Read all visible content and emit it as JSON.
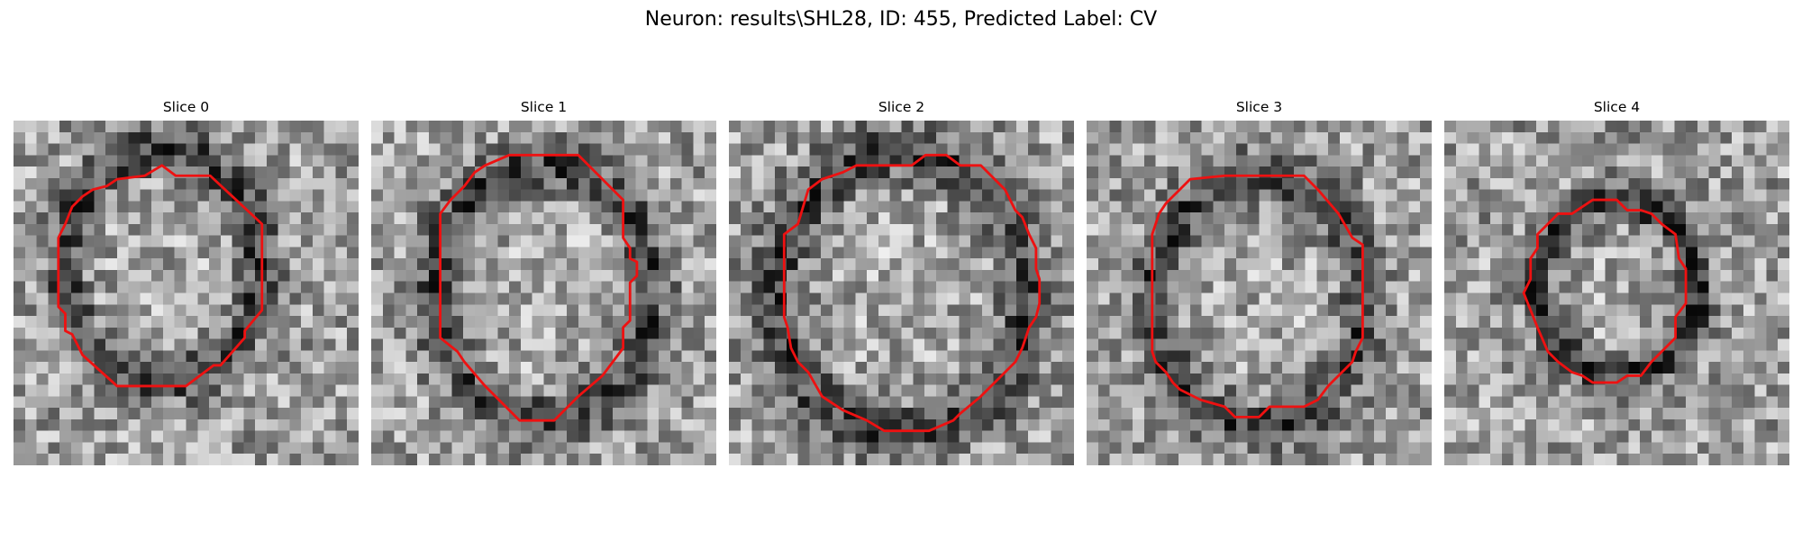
{
  "figure": {
    "title": "Neuron: results\\SHL28, ID: 455, Predicted Label: CV",
    "contour_color": "#ee1111"
  },
  "slices": [
    {
      "label": "Slice 0",
      "center": [
        0.43,
        0.42
      ],
      "radius": [
        0.28,
        0.33
      ],
      "bright": 1.1,
      "dark_ring": 0.35,
      "contour": [
        [
          0.43,
          0.13
        ],
        [
          0.47,
          0.16
        ],
        [
          0.57,
          0.16
        ],
        [
          0.72,
          0.3
        ],
        [
          0.72,
          0.55
        ],
        [
          0.67,
          0.61
        ],
        [
          0.67,
          0.63
        ],
        [
          0.6,
          0.71
        ],
        [
          0.58,
          0.71
        ],
        [
          0.5,
          0.77
        ],
        [
          0.3,
          0.77
        ],
        [
          0.2,
          0.68
        ],
        [
          0.19,
          0.66
        ],
        [
          0.17,
          0.62
        ],
        [
          0.15,
          0.61
        ],
        [
          0.15,
          0.56
        ],
        [
          0.13,
          0.54
        ],
        [
          0.13,
          0.34
        ],
        [
          0.15,
          0.3
        ],
        [
          0.17,
          0.25
        ],
        [
          0.2,
          0.22
        ],
        [
          0.23,
          0.2
        ],
        [
          0.27,
          0.19
        ],
        [
          0.3,
          0.17
        ],
        [
          0.38,
          0.16
        ]
      ]
    },
    {
      "label": "Slice 1",
      "center": [
        0.5,
        0.5
      ],
      "radius": [
        0.31,
        0.36
      ],
      "bright": 1.1,
      "dark_ring": 0.35,
      "contour": [
        [
          0.4,
          0.1
        ],
        [
          0.6,
          0.1
        ],
        [
          0.73,
          0.23
        ],
        [
          0.73,
          0.34
        ],
        [
          0.75,
          0.37
        ],
        [
          0.75,
          0.4
        ],
        [
          0.77,
          0.41
        ],
        [
          0.77,
          0.45
        ],
        [
          0.75,
          0.47
        ],
        [
          0.75,
          0.58
        ],
        [
          0.73,
          0.6
        ],
        [
          0.73,
          0.66
        ],
        [
          0.7,
          0.7
        ],
        [
          0.67,
          0.74
        ],
        [
          0.6,
          0.8
        ],
        [
          0.53,
          0.87
        ],
        [
          0.43,
          0.87
        ],
        [
          0.33,
          0.77
        ],
        [
          0.27,
          0.7
        ],
        [
          0.25,
          0.67
        ],
        [
          0.2,
          0.63
        ],
        [
          0.2,
          0.27
        ],
        [
          0.23,
          0.23
        ],
        [
          0.27,
          0.19
        ],
        [
          0.3,
          0.15
        ],
        [
          0.33,
          0.13
        ]
      ]
    },
    {
      "label": "Slice 2",
      "center": [
        0.5,
        0.5
      ],
      "radius": [
        0.36,
        0.4
      ],
      "bright": 1.1,
      "dark_ring": 0.35,
      "contour": [
        [
          0.57,
          0.1
        ],
        [
          0.63,
          0.1
        ],
        [
          0.67,
          0.13
        ],
        [
          0.73,
          0.13
        ],
        [
          0.8,
          0.2
        ],
        [
          0.83,
          0.26
        ],
        [
          0.85,
          0.28
        ],
        [
          0.87,
          0.33
        ],
        [
          0.89,
          0.37
        ],
        [
          0.89,
          0.43
        ],
        [
          0.9,
          0.46
        ],
        [
          0.9,
          0.53
        ],
        [
          0.89,
          0.57
        ],
        [
          0.87,
          0.6
        ],
        [
          0.85,
          0.66
        ],
        [
          0.83,
          0.7
        ],
        [
          0.8,
          0.73
        ],
        [
          0.73,
          0.8
        ],
        [
          0.67,
          0.85
        ],
        [
          0.65,
          0.87
        ],
        [
          0.58,
          0.9
        ],
        [
          0.45,
          0.9
        ],
        [
          0.4,
          0.87
        ],
        [
          0.33,
          0.84
        ],
        [
          0.27,
          0.8
        ],
        [
          0.23,
          0.73
        ],
        [
          0.2,
          0.7
        ],
        [
          0.18,
          0.66
        ],
        [
          0.17,
          0.6
        ],
        [
          0.16,
          0.57
        ],
        [
          0.16,
          0.33
        ],
        [
          0.2,
          0.3
        ],
        [
          0.23,
          0.2
        ],
        [
          0.27,
          0.17
        ],
        [
          0.33,
          0.15
        ],
        [
          0.37,
          0.13
        ],
        [
          0.53,
          0.13
        ]
      ]
    },
    {
      "label": "Slice 3",
      "center": [
        0.5,
        0.52
      ],
      "radius": [
        0.3,
        0.36
      ],
      "bright": 1.0,
      "dark_ring": 0.35,
      "contour": [
        [
          0.3,
          0.17
        ],
        [
          0.4,
          0.16
        ],
        [
          0.63,
          0.16
        ],
        [
          0.67,
          0.2
        ],
        [
          0.73,
          0.27
        ],
        [
          0.77,
          0.34
        ],
        [
          0.8,
          0.36
        ],
        [
          0.8,
          0.63
        ],
        [
          0.78,
          0.67
        ],
        [
          0.77,
          0.7
        ],
        [
          0.7,
          0.77
        ],
        [
          0.67,
          0.81
        ],
        [
          0.63,
          0.83
        ],
        [
          0.53,
          0.83
        ],
        [
          0.5,
          0.86
        ],
        [
          0.43,
          0.86
        ],
        [
          0.4,
          0.83
        ],
        [
          0.33,
          0.81
        ],
        [
          0.27,
          0.78
        ],
        [
          0.25,
          0.76
        ],
        [
          0.23,
          0.73
        ],
        [
          0.2,
          0.7
        ],
        [
          0.19,
          0.67
        ],
        [
          0.19,
          0.6
        ],
        [
          0.19,
          0.33
        ],
        [
          0.21,
          0.27
        ],
        [
          0.23,
          0.24
        ],
        [
          0.27,
          0.2
        ]
      ]
    },
    {
      "label": "Slice 4",
      "center": [
        0.5,
        0.48
      ],
      "radius": [
        0.23,
        0.25
      ],
      "bright": 0.9,
      "dark_ring": 0.45,
      "contour": [
        [
          0.43,
          0.23
        ],
        [
          0.5,
          0.23
        ],
        [
          0.53,
          0.26
        ],
        [
          0.57,
          0.26
        ],
        [
          0.6,
          0.27
        ],
        [
          0.63,
          0.3
        ],
        [
          0.67,
          0.33
        ],
        [
          0.68,
          0.4
        ],
        [
          0.7,
          0.43
        ],
        [
          0.7,
          0.53
        ],
        [
          0.67,
          0.57
        ],
        [
          0.67,
          0.63
        ],
        [
          0.63,
          0.67
        ],
        [
          0.6,
          0.7
        ],
        [
          0.57,
          0.74
        ],
        [
          0.53,
          0.74
        ],
        [
          0.5,
          0.76
        ],
        [
          0.43,
          0.76
        ],
        [
          0.4,
          0.74
        ],
        [
          0.37,
          0.73
        ],
        [
          0.33,
          0.7
        ],
        [
          0.3,
          0.67
        ],
        [
          0.27,
          0.6
        ],
        [
          0.25,
          0.55
        ],
        [
          0.23,
          0.5
        ],
        [
          0.25,
          0.46
        ],
        [
          0.25,
          0.4
        ],
        [
          0.27,
          0.37
        ],
        [
          0.27,
          0.33
        ],
        [
          0.3,
          0.3
        ],
        [
          0.33,
          0.27
        ],
        [
          0.37,
          0.27
        ],
        [
          0.4,
          0.25
        ]
      ]
    }
  ]
}
